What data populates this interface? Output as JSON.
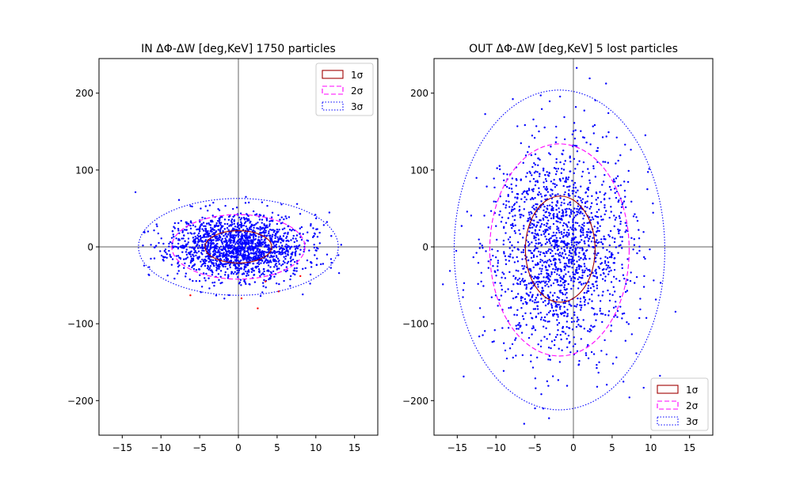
{
  "chart_data": [
    {
      "type": "scatter",
      "title": "IN ΔΦ-ΔW [deg,KeV] 1750 particles",
      "xlabel": "",
      "ylabel": "",
      "xlim": [
        -18,
        18
      ],
      "ylim": [
        -245,
        245
      ],
      "xticks": [
        -15,
        -10,
        -5,
        0,
        5,
        10,
        15
      ],
      "yticks": [
        -200,
        -100,
        0,
        100,
        200
      ],
      "grid": false,
      "legend_position": "top-right",
      "reference_lines": {
        "x": 0,
        "y": 0,
        "color": "#808080"
      },
      "scatter_seed": 11,
      "series": [
        {
          "color": "#0000ff",
          "count": 1750,
          "center": [
            0,
            0
          ],
          "sigma": [
            4.3,
            21
          ],
          "clip": [
            -14.5,
            14.5,
            -75,
            75
          ]
        },
        {
          "color": "#ff0000",
          "points": [
            [
              -6.2,
              -63
            ],
            [
              0.4,
              -67
            ],
            [
              2.5,
              -80
            ],
            [
              5.2,
              -58
            ],
            [
              8.0,
              -38
            ],
            [
              3.5,
              -45
            ]
          ]
        }
      ],
      "ellipses": [
        {
          "label": "1σ",
          "center": [
            0,
            0
          ],
          "semi_axes": [
            4.3,
            21
          ],
          "color": "#a00000",
          "dash": "solid"
        },
        {
          "label": "2σ",
          "center": [
            0,
            0
          ],
          "semi_axes": [
            8.6,
            42
          ],
          "color": "#ff00ff",
          "dash": "dashed"
        },
        {
          "label": "3σ",
          "center": [
            0,
            0
          ],
          "semi_axes": [
            12.9,
            63
          ],
          "color": "#0000ff",
          "dash": "dotted"
        }
      ]
    },
    {
      "type": "scatter",
      "title": "OUT ΔΦ-ΔW [deg,KeV] 5 lost particles",
      "xlabel": "",
      "ylabel": "",
      "xlim": [
        -18,
        18
      ],
      "ylim": [
        -245,
        245
      ],
      "xticks": [
        -15,
        -10,
        -5,
        0,
        5,
        10,
        15
      ],
      "yticks": [
        -200,
        -100,
        0,
        100,
        200
      ],
      "grid": false,
      "legend_position": "bottom-right",
      "reference_lines": {
        "x": 0,
        "y": 0,
        "color": "#808080"
      },
      "scatter_seed": 29,
      "series": [
        {
          "color": "#0000ff",
          "count": 1745,
          "center": [
            -1.8,
            -3
          ],
          "sigma": [
            4.6,
            69
          ],
          "clip": [
            -18,
            18,
            -245,
            245
          ]
        }
      ],
      "ellipses": [
        {
          "label": "1σ",
          "center": [
            -1.7,
            -3
          ],
          "semi_axes": [
            4.5,
            69
          ],
          "color": "#a00000",
          "dash": "solid"
        },
        {
          "label": "2σ",
          "center": [
            -1.8,
            -4
          ],
          "semi_axes": [
            9.0,
            138
          ],
          "color": "#ff00ff",
          "dash": "dashed"
        },
        {
          "label": "3σ",
          "center": [
            -1.8,
            -4
          ],
          "semi_axes": [
            13.6,
            208
          ],
          "color": "#0000ff",
          "dash": "dotted"
        }
      ]
    }
  ]
}
